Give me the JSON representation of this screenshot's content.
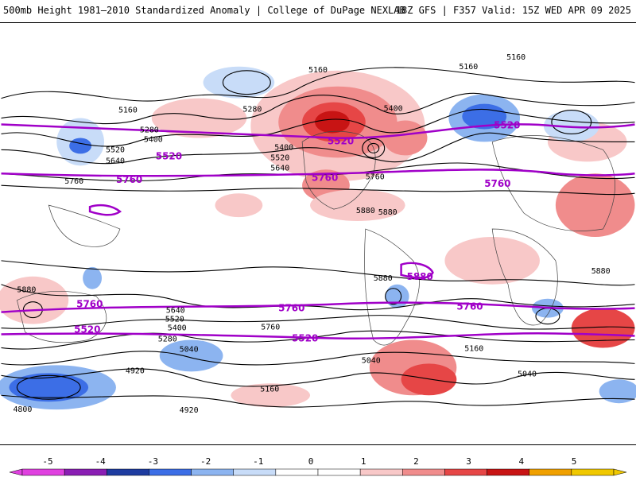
{
  "header": {
    "left": "500mb Height 1981–2010 Standardized Anomaly | College of DuPage NEXLAB",
    "right": "18Z GFS | F357 Valid: 15Z WED APR 09 2025"
  },
  "colorbar": {
    "ticks": [
      "-5",
      "-4",
      "-3",
      "-2",
      "-1",
      "0",
      "1",
      "2",
      "3",
      "4",
      "5"
    ],
    "colors": [
      "#e040e0",
      "#8a1eb4",
      "#1e3ca0",
      "#3c6ee6",
      "#8cb4f0",
      "#c8dcf8",
      "#ffffff",
      "#ffffff",
      "#f8c8c8",
      "#f08c8c",
      "#e64646",
      "#c81414",
      "#f0a000",
      "#f0c800"
    ]
  },
  "contour_labels": {
    "black": [
      "5160",
      "5160",
      "5160",
      "5280",
      "5400",
      "5400",
      "5520",
      "5640",
      "5760",
      "5880",
      "5880",
      "5880",
      "5160",
      "5280",
      "5400",
      "5520",
      "5640",
      "5760",
      "5040",
      "4920",
      "4800",
      "4920",
      "5040",
      "5160",
      "5280",
      "5400",
      "5520",
      "5640",
      "5760",
      "5040",
      "5160",
      "5880",
      "5880"
    ],
    "purple": [
      "5520",
      "5520",
      "5520",
      "5760",
      "5760",
      "5760",
      "5880",
      "5760",
      "5760",
      "5760",
      "5520",
      "5520"
    ]
  },
  "colors": {
    "purple_line": "#a000c8",
    "contour": "#000000"
  }
}
